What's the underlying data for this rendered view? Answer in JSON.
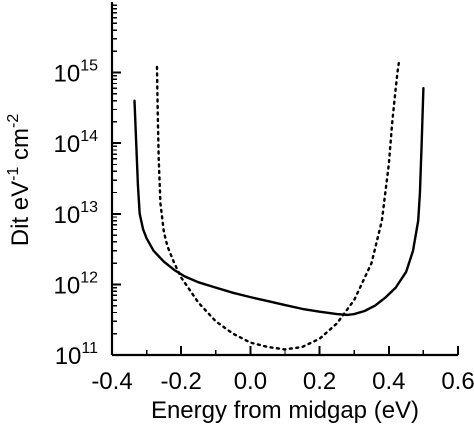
{
  "chart_data": {
    "type": "line",
    "title": "",
    "xlabel": "Energy from midgap (eV)",
    "ylabel": "Dit eV",
    "ylabel_exp1": "-1",
    "ylabel_unit": " cm",
    "ylabel_exp2": "-2",
    "xlim": [
      -0.4,
      0.6
    ],
    "ylim": [
      100000000000.0,
      1e+16
    ],
    "yscale": "log",
    "grid": false,
    "legend": "none",
    "xticks": [
      "-0.4",
      "-0.2",
      "0.0",
      "0.2",
      "0.4",
      "0.6"
    ],
    "yticks": [
      {
        "base": "10",
        "exp": "11",
        "value": 100000000000.0
      },
      {
        "base": "10",
        "exp": "12",
        "value": 1000000000000.0
      },
      {
        "base": "10",
        "exp": "13",
        "value": 10000000000000.0
      },
      {
        "base": "10",
        "exp": "14",
        "value": 100000000000000.0
      },
      {
        "base": "10",
        "exp": "15",
        "value": 1000000000000000.0
      }
    ],
    "series": [
      {
        "style": "solid",
        "x": [
          -0.335,
          -0.33,
          -0.325,
          -0.32,
          -0.31,
          -0.3,
          -0.28,
          -0.25,
          -0.22,
          -0.19,
          -0.15,
          -0.1,
          -0.05,
          0.0,
          0.05,
          0.1,
          0.15,
          0.2,
          0.25,
          0.28,
          0.3,
          0.33,
          0.36,
          0.39,
          0.42,
          0.45,
          0.47,
          0.485,
          0.49,
          0.495,
          0.5
        ],
        "y": [
          400000000000000.0,
          100000000000000.0,
          25000000000000.0,
          10000000000000.0,
          6000000000000.0,
          4500000000000.0,
          3000000000000.0,
          2100000000000.0,
          1600000000000.0,
          1300000000000.0,
          1070000000000.0,
          900000000000.0,
          760000000000.0,
          660000000000.0,
          580000000000.0,
          510000000000.0,
          450000000000.0,
          410000000000.0,
          380000000000.0,
          370000000000.0,
          380000000000.0,
          420000000000.0,
          500000000000.0,
          650000000000.0,
          900000000000.0,
          1500000000000.0,
          3000000000000.0,
          8000000000000.0,
          20000000000000.0,
          100000000000000.0,
          600000000000000.0
        ]
      },
      {
        "style": "dotted",
        "x": [
          -0.27,
          -0.268,
          -0.265,
          -0.26,
          -0.25,
          -0.24,
          -0.22,
          -0.2,
          -0.15,
          -0.1,
          -0.05,
          0.0,
          0.05,
          0.1,
          0.15,
          0.2,
          0.25,
          0.3,
          0.35,
          0.38,
          0.4,
          0.41,
          0.42,
          0.425,
          0.43
        ],
        "y": [
          1200000000000000.0,
          300000000000000.0,
          60000000000000.0,
          14000000000000.0,
          5500000000000.0,
          3500000000000.0,
          2000000000000.0,
          1250000000000.0,
          550000000000.0,
          300000000000.0,
          200000000000.0,
          150000000000.0,
          130000000000.0,
          120000000000.0,
          130000000000.0,
          170000000000.0,
          280000000000.0,
          600000000000.0,
          2000000000000.0,
          8000000000000.0,
          50000000000000.0,
          200000000000000.0,
          600000000000000.0,
          1000000000000000.0,
          1500000000000000.0
        ]
      }
    ]
  }
}
